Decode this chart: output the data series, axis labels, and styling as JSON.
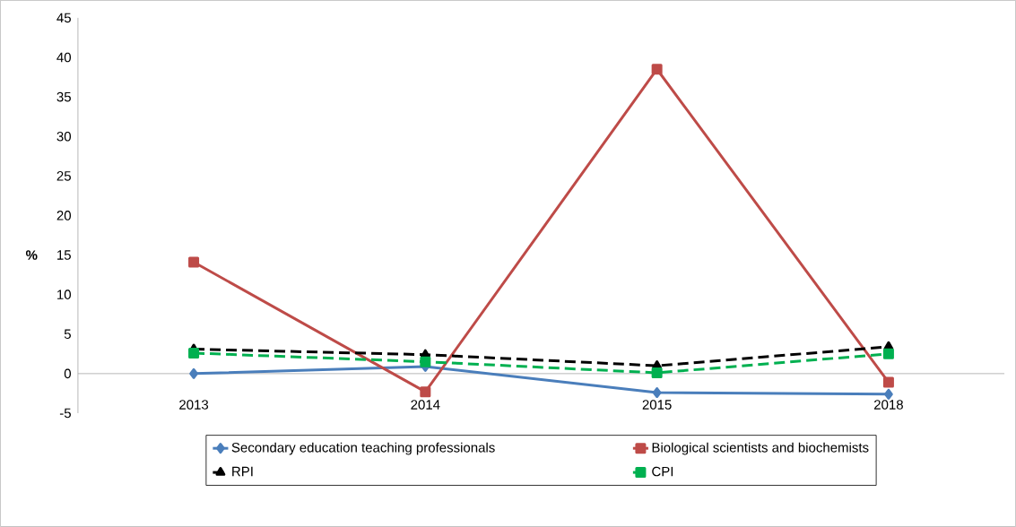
{
  "chart_data": {
    "type": "line",
    "ylabel": "%",
    "categories": [
      "2013",
      "2014",
      "2015",
      "2018"
    ],
    "ylim": [
      -5,
      45
    ],
    "yticks": [
      -5,
      0,
      5,
      10,
      15,
      20,
      25,
      30,
      35,
      40,
      45
    ],
    "legend": "bottom",
    "grid": false,
    "series": [
      {
        "name": "Secondary education teaching professionals",
        "color": "#4a7ebb",
        "marker": "diamond",
        "line_style": "solid",
        "values": [
          0,
          0.9,
          -2.4,
          -2.6
        ]
      },
      {
        "name": "Biological scientists and biochemists",
        "color": "#be4b48",
        "marker": "square",
        "line_style": "solid",
        "values": [
          14.1,
          -2.3,
          38.5,
          -1.1
        ]
      },
      {
        "name": "RPI",
        "color": "#000000",
        "marker": "triangle",
        "line_style": "dashed",
        "values": [
          3.1,
          2.4,
          1.0,
          3.4
        ]
      },
      {
        "name": "CPI",
        "color": "#00b050",
        "marker": "square",
        "line_style": "dashed",
        "values": [
          2.6,
          1.5,
          0.1,
          2.5
        ]
      }
    ]
  }
}
